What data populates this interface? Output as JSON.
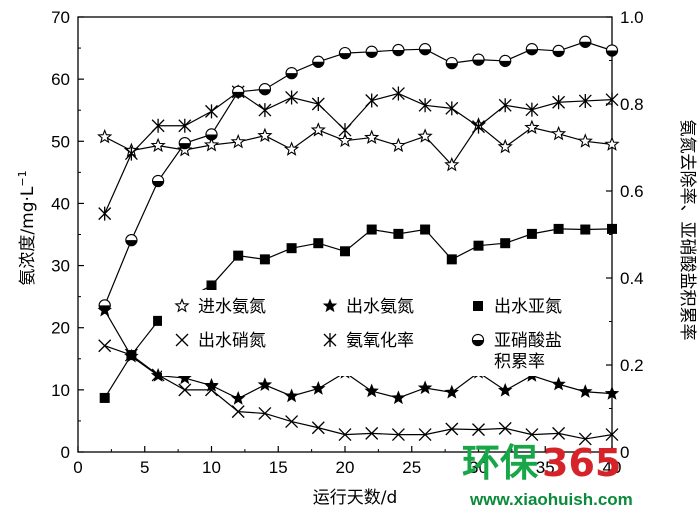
{
  "chart_data": {
    "type": "line",
    "xlabel": "运行天数/d",
    "ylabel_left": "氨浓度/mg·L",
    "ylabel_left_sup": "−1",
    "ylabel_right": "氨氮去除率、亚硝酸盐积累率",
    "xlim": [
      0,
      40
    ],
    "ylim_left": [
      0,
      70
    ],
    "ylim_right": [
      0,
      1.0
    ],
    "x_ticks": [
      "0",
      "5",
      "10",
      "15",
      "20",
      "25",
      "30",
      "35",
      "40"
    ],
    "y_left_ticks": [
      "0",
      "10",
      "20",
      "30",
      "40",
      "50",
      "60",
      "70"
    ],
    "y_right_ticks": [
      "0",
      "0.2",
      "0.4",
      "0.6",
      "0.8",
      "1.0"
    ],
    "grid": false,
    "legend_position": "center-right",
    "series": [
      {
        "name": "进水氨氮",
        "axis": "left",
        "marker": "open-star",
        "x": [
          2,
          4,
          6,
          8,
          10,
          12,
          14,
          16,
          18,
          20,
          22,
          24,
          26,
          28,
          30,
          32,
          34,
          36,
          38,
          40
        ],
        "y": [
          50.7,
          48.5,
          49.3,
          48.6,
          49.4,
          49.9,
          50.9,
          48.7,
          51.8,
          50.1,
          50.6,
          49.3,
          50.8,
          46.2,
          52.6,
          49.1,
          52.2,
          51.2,
          50.0,
          49.5
        ]
      },
      {
        "name": "出水氨氮",
        "axis": "left",
        "marker": "filled-star",
        "x": [
          2,
          4,
          6,
          8,
          10,
          12,
          14,
          16,
          18,
          20,
          22,
          24,
          26,
          28,
          30,
          32,
          34,
          36,
          38,
          40
        ],
        "y": [
          22.8,
          15.4,
          12.3,
          11.9,
          10.7,
          8.6,
          10.8,
          9.0,
          10.2,
          12.8,
          9.8,
          8.7,
          10.3,
          9.6,
          12.8,
          9.9,
          12.3,
          10.9,
          9.7,
          9.4
        ]
      },
      {
        "name": "出水亚氮",
        "axis": "left",
        "marker": "filled-square",
        "x": [
          2,
          4,
          6,
          8,
          10,
          12,
          14,
          16,
          18,
          20,
          22,
          24,
          26,
          28,
          30,
          32,
          34,
          36,
          38,
          40
        ],
        "y": [
          8.7,
          15.6,
          21.1,
          24.5,
          26.8,
          31.6,
          31.0,
          32.8,
          33.6,
          32.3,
          35.8,
          35.1,
          35.8,
          31.0,
          33.2,
          33.6,
          35.1,
          35.9,
          35.8,
          35.9
        ]
      },
      {
        "name": "出水硝氮",
        "axis": "left",
        "marker": "x",
        "x": [
          2,
          4,
          6,
          8,
          10,
          12,
          14,
          16,
          18,
          20,
          22,
          24,
          26,
          28,
          30,
          32,
          34,
          36,
          38,
          40
        ],
        "y": [
          17.1,
          15.6,
          12.4,
          10.0,
          10.0,
          6.5,
          6.2,
          4.9,
          3.9,
          2.8,
          3.0,
          2.8,
          2.8,
          3.7,
          3.6,
          3.8,
          2.8,
          3.0,
          2.1,
          2.8
        ]
      },
      {
        "name": "氨氧化率",
        "axis": "right",
        "marker": "asterisk",
        "x": [
          2,
          4,
          6,
          8,
          10,
          12,
          14,
          16,
          18,
          20,
          22,
          24,
          26,
          28,
          30,
          32,
          34,
          36,
          38,
          40
        ],
        "y": [
          0.548,
          0.686,
          0.75,
          0.75,
          0.783,
          0.828,
          0.786,
          0.815,
          0.8,
          0.74,
          0.808,
          0.824,
          0.797,
          0.79,
          0.748,
          0.797,
          0.787,
          0.804,
          0.807,
          0.81
        ]
      },
      {
        "name": "亚硝酸盐\n积累率",
        "axis": "right",
        "marker": "half-circle",
        "x": [
          2,
          4,
          6,
          8,
          10,
          12,
          14,
          16,
          18,
          20,
          22,
          24,
          26,
          28,
          30,
          32,
          34,
          36,
          38,
          40
        ],
        "y": [
          0.337,
          0.487,
          0.623,
          0.71,
          0.73,
          0.828,
          0.834,
          0.871,
          0.897,
          0.917,
          0.92,
          0.924,
          0.926,
          0.894,
          0.902,
          0.899,
          0.926,
          0.922,
          0.943,
          0.923
        ]
      }
    ]
  },
  "legend": {
    "row1": [
      "进水氨氮",
      "出水氨氮",
      "出水亚氮"
    ],
    "row2": [
      "出水硝氮",
      "氨氧化率",
      "亚硝酸盐"
    ],
    "row2_extra": "积累率"
  },
  "watermark": {
    "brand_cn": "环保",
    "brand_num": "365",
    "url": "www.xiaohuish.com",
    "colors": {
      "green": "#18a748",
      "red": "#d6232a",
      "dark_green": "#0a8a3a"
    }
  }
}
